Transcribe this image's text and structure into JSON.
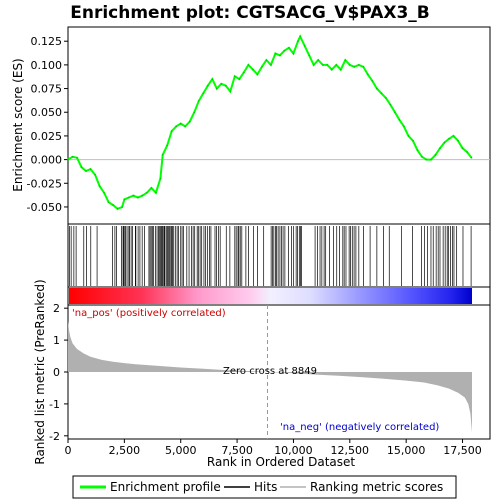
{
  "chart_data": [
    {
      "type": "line",
      "title": "Enrichment plot: CGTSACG_V$PAX3_B",
      "ylabel": "Enrichment score (ES)",
      "ylim": [
        -0.068,
        0.14
      ],
      "yticks": [
        -0.05,
        -0.025,
        0.0,
        0.025,
        0.05,
        0.075,
        0.1,
        0.125
      ],
      "ytick_labels": [
        "-0.050",
        "-0.025",
        "0.000",
        "0.025",
        "0.050",
        "0.075",
        "0.100",
        "0.125"
      ],
      "xlim": [
        0,
        18000
      ],
      "grid": false,
      "series": [
        {
          "name": "Enrichment profile",
          "color": "#00ff00",
          "x": [
            0,
            200,
            400,
            600,
            800,
            1000,
            1200,
            1400,
            1600,
            1800,
            2000,
            2200,
            2400,
            2500,
            2700,
            2900,
            3100,
            3300,
            3500,
            3700,
            3900,
            4100,
            4200,
            4400,
            4600,
            4800,
            5000,
            5200,
            5400,
            5600,
            5800,
            6000,
            6200,
            6400,
            6600,
            6800,
            7000,
            7200,
            7400,
            7600,
            7800,
            8000,
            8200,
            8400,
            8600,
            8800,
            9000,
            9200,
            9400,
            9600,
            9800,
            10000,
            10200,
            10300,
            10500,
            10700,
            10900,
            11100,
            11300,
            11500,
            11700,
            11900,
            12100,
            12300,
            12500,
            12700,
            12900,
            13100,
            13300,
            13500,
            13700,
            13900,
            14100,
            14300,
            14500,
            14700,
            14900,
            15100,
            15300,
            15500,
            15700,
            15900,
            16100,
            16300,
            16500,
            16700,
            16900,
            17100,
            17300,
            17500,
            17700,
            17900
          ],
          "values": [
            0.0,
            0.003,
            0.002,
            -0.008,
            -0.012,
            -0.01,
            -0.016,
            -0.028,
            -0.035,
            -0.045,
            -0.048,
            -0.052,
            -0.05,
            -0.042,
            -0.04,
            -0.038,
            -0.04,
            -0.038,
            -0.035,
            -0.03,
            -0.035,
            -0.02,
            0.005,
            0.015,
            0.03,
            0.035,
            0.038,
            0.035,
            0.04,
            0.05,
            0.062,
            0.07,
            0.078,
            0.085,
            0.075,
            0.08,
            0.078,
            0.072,
            0.088,
            0.085,
            0.092,
            0.1,
            0.095,
            0.09,
            0.098,
            0.105,
            0.1,
            0.112,
            0.11,
            0.115,
            0.118,
            0.112,
            0.125,
            0.13,
            0.12,
            0.11,
            0.1,
            0.105,
            0.1,
            0.1,
            0.095,
            0.1,
            0.095,
            0.105,
            0.1,
            0.098,
            0.1,
            0.098,
            0.09,
            0.083,
            0.075,
            0.07,
            0.065,
            0.058,
            0.05,
            0.042,
            0.035,
            0.025,
            0.02,
            0.01,
            0.003,
            0.0,
            0.0,
            0.005,
            0.012,
            0.018,
            0.022,
            0.025,
            0.02,
            0.012,
            0.008,
            0.002
          ]
        }
      ]
    },
    {
      "type": "hits",
      "legend_name": "Hits",
      "xlim": [
        0,
        18000
      ],
      "hit_positions": [
        60,
        140,
        260,
        360,
        700,
        820,
        1010,
        1290,
        1980,
        2080,
        2150,
        2370,
        2440,
        2470,
        2520,
        2560,
        2620,
        2700,
        2730,
        2800,
        2860,
        2990,
        3010,
        3110,
        3190,
        3290,
        3400,
        3590,
        3640,
        3690,
        3740,
        3800,
        3880,
        3950,
        4010,
        4050,
        4110,
        4140,
        4180,
        4220,
        4270,
        4300,
        4360,
        4410,
        4450,
        4500,
        4560,
        4600,
        4640,
        4690,
        4760,
        4840,
        4900,
        5000,
        5060,
        5130,
        5270,
        5370,
        5480,
        5550,
        5620,
        5730,
        5780,
        5860,
        5930,
        6030,
        6100,
        6180,
        6280,
        6340,
        6520,
        6590,
        6680,
        6750,
        7020,
        7180,
        7400,
        7460,
        7540,
        7580,
        7640,
        7710,
        7890,
        8000,
        8230,
        8400,
        8680,
        9010,
        9070,
        9130,
        9200,
        9250,
        9320,
        9400,
        9470,
        9540,
        9620,
        9780,
        9910,
        10010,
        10120,
        10180,
        10260,
        10310,
        10360,
        10960,
        11070,
        11180,
        11260,
        11360,
        11430,
        11600,
        11780,
        11920,
        12040,
        12190,
        12250,
        12330,
        12470,
        12530,
        12610,
        12690,
        12770,
        12900,
        13110,
        13400,
        13700,
        14000,
        14250,
        14800,
        15280,
        15680,
        15810,
        15950,
        16100,
        16200,
        16330,
        16420,
        16500,
        16640,
        16730,
        16820,
        16870,
        16960,
        17050,
        17120,
        17240,
        17520,
        17880
      ]
    },
    {
      "type": "area",
      "ylabel": "Ranked list metric (PreRanked)",
      "xlabel": "Rank in Ordered Dataset",
      "xlim": [
        0,
        18000
      ],
      "ylim": [
        -2.1,
        2.1
      ],
      "yticks": [
        -2,
        -1,
        0,
        1,
        2
      ],
      "ytick_labels": [
        "-2",
        "-1",
        "0",
        "1",
        "2"
      ],
      "xticks": [
        0,
        2500,
        5000,
        7500,
        10000,
        12500,
        15000,
        17500
      ],
      "xtick_labels": [
        "0",
        "2,500",
        "5,000",
        "7,500",
        "10,000",
        "12,500",
        "15,000",
        "17,500"
      ],
      "series": [
        {
          "name": "Ranking metric scores",
          "color": "#b0b0b0",
          "x": [
            0,
            50,
            100,
            200,
            400,
            700,
            1000,
            1500,
            2000,
            3000,
            4000,
            5000,
            6000,
            7000,
            8000,
            8849,
            10000,
            11000,
            12000,
            13000,
            14000,
            15000,
            15800,
            16400,
            16900,
            17300,
            17600,
            17750,
            17850,
            17920
          ],
          "values": [
            1.6,
            1.3,
            1.1,
            0.9,
            0.72,
            0.58,
            0.48,
            0.38,
            0.32,
            0.24,
            0.19,
            0.14,
            0.1,
            0.06,
            0.03,
            0.0,
            -0.04,
            -0.08,
            -0.12,
            -0.16,
            -0.21,
            -0.27,
            -0.33,
            -0.42,
            -0.52,
            -0.65,
            -0.8,
            -1.0,
            -1.3,
            -1.9
          ]
        }
      ],
      "zero_cross_label": "Zero cross at 8849",
      "zero_cross": 8849,
      "pos_label": "'na_pos' (positively correlated)",
      "neg_label": "'na_neg' (negatively correlated)",
      "pos_color": "#ff0000",
      "neg_color": "#0000ff"
    }
  ],
  "legend": {
    "items": [
      {
        "label": "Enrichment profile",
        "color": "#00ff00"
      },
      {
        "label": "Hits",
        "color": "#000000"
      },
      {
        "label": "Ranking metric scores",
        "color": "#b0b0b0"
      }
    ]
  }
}
